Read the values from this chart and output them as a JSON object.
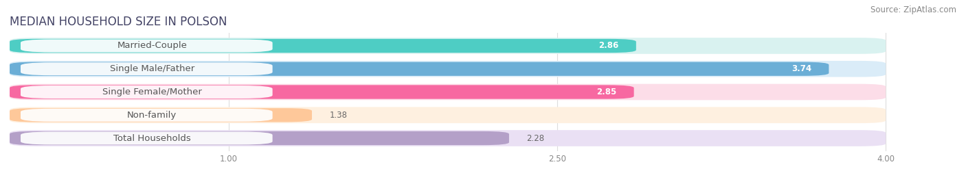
{
  "title": "MEDIAN HOUSEHOLD SIZE IN POLSON",
  "source": "Source: ZipAtlas.com",
  "categories": [
    "Married-Couple",
    "Single Male/Father",
    "Single Female/Mother",
    "Non-family",
    "Total Households"
  ],
  "values": [
    2.86,
    3.74,
    2.85,
    1.38,
    2.28
  ],
  "bar_colors": [
    "#4ECDC4",
    "#6BAED6",
    "#F768A1",
    "#FEC89A",
    "#B4A0C8"
  ],
  "bar_bg_colors": [
    "#D9F2F0",
    "#DAEcf8",
    "#FCDDE8",
    "#FEF0E0",
    "#EAE0F4"
  ],
  "xlim": [
    0,
    4.3
  ],
  "xmin": 0,
  "xmax": 4.0,
  "xticks": [
    1.0,
    2.5,
    4.0
  ],
  "xtick_labels": [
    "1.00",
    "2.50",
    "4.00"
  ],
  "value_color_inside": [
    "white",
    "white",
    "white",
    "dark",
    "dark"
  ],
  "title_fontsize": 12,
  "source_fontsize": 8.5,
  "bar_label_fontsize": 9.5,
  "value_fontsize": 8.5,
  "background_color": "#ffffff",
  "label_text_color": "#555555"
}
